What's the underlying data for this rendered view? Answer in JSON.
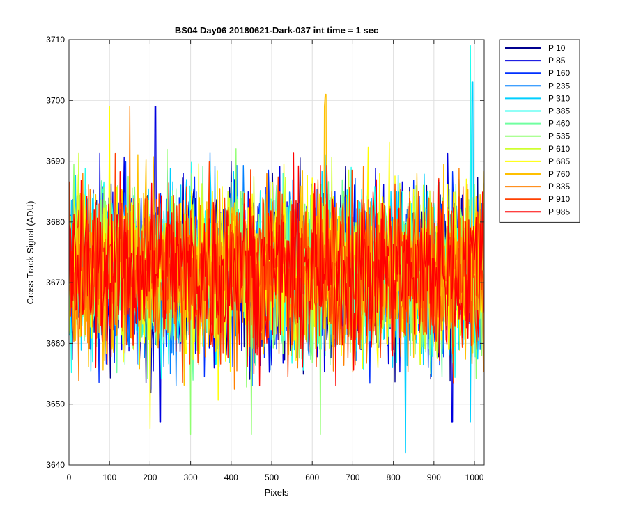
{
  "chart_data": {
    "type": "line",
    "title": "BS04 Day06 20180621-Dark-037 int time = 1 sec",
    "xlabel": "Pixels",
    "ylabel": "Cross Track Signal (ADU)",
    "xlim": [
      0,
      1024
    ],
    "ylim": [
      3640,
      3710
    ],
    "xticks": [
      0,
      100,
      200,
      300,
      400,
      500,
      600,
      700,
      800,
      900,
      1000
    ],
    "yticks": [
      3640,
      3650,
      3660,
      3670,
      3680,
      3690,
      3700,
      3710
    ],
    "grid": true,
    "legend_location": "outside-top-right",
    "signal_mean": 3672,
    "signal_spread_typical": 12,
    "series": [
      {
        "name": "P 10",
        "color": "#00008f"
      },
      {
        "name": "P 85",
        "color": "#0000df"
      },
      {
        "name": "P 160",
        "color": "#0030ff"
      },
      {
        "name": "P 235",
        "color": "#0080ff"
      },
      {
        "name": "P 310",
        "color": "#00cfff"
      },
      {
        "name": "P 385",
        "color": "#20ffef"
      },
      {
        "name": "P 460",
        "color": "#70ffa0"
      },
      {
        "name": "P 535",
        "color": "#8fff70"
      },
      {
        "name": "P 610",
        "color": "#cfff30"
      },
      {
        "name": "P 685",
        "color": "#ffff00"
      },
      {
        "name": "P 760",
        "color": "#ffc000"
      },
      {
        "name": "P 835",
        "color": "#ff8000"
      },
      {
        "name": "P 910",
        "color": "#ff4000"
      },
      {
        "name": "P 985",
        "color": "#ff0000"
      }
    ],
    "notable_extremes": [
      {
        "series": "P 385",
        "x": 990,
        "y": 3709
      },
      {
        "series": "P 310",
        "x": 995,
        "y": 3703
      },
      {
        "series": "P 685",
        "x": 100,
        "y": 3699
      },
      {
        "series": "P 85",
        "x": 213,
        "y": 3699
      },
      {
        "series": "P 835",
        "x": 150,
        "y": 3699
      },
      {
        "series": "P 760",
        "x": 630,
        "y": 3699
      },
      {
        "series": "P 760",
        "x": 633,
        "y": 3701
      },
      {
        "series": "P 310",
        "x": 830,
        "y": 3642
      },
      {
        "series": "P 535",
        "x": 450,
        "y": 3645
      },
      {
        "series": "P 535",
        "x": 300,
        "y": 3645
      },
      {
        "series": "P 535",
        "x": 620,
        "y": 3645
      },
      {
        "series": "P 685",
        "x": 200,
        "y": 3646
      },
      {
        "series": "P 310",
        "x": 990,
        "y": 3647
      },
      {
        "series": "P 85",
        "x": 945,
        "y": 3647
      },
      {
        "series": "P 85",
        "x": 225,
        "y": 3647
      }
    ]
  }
}
